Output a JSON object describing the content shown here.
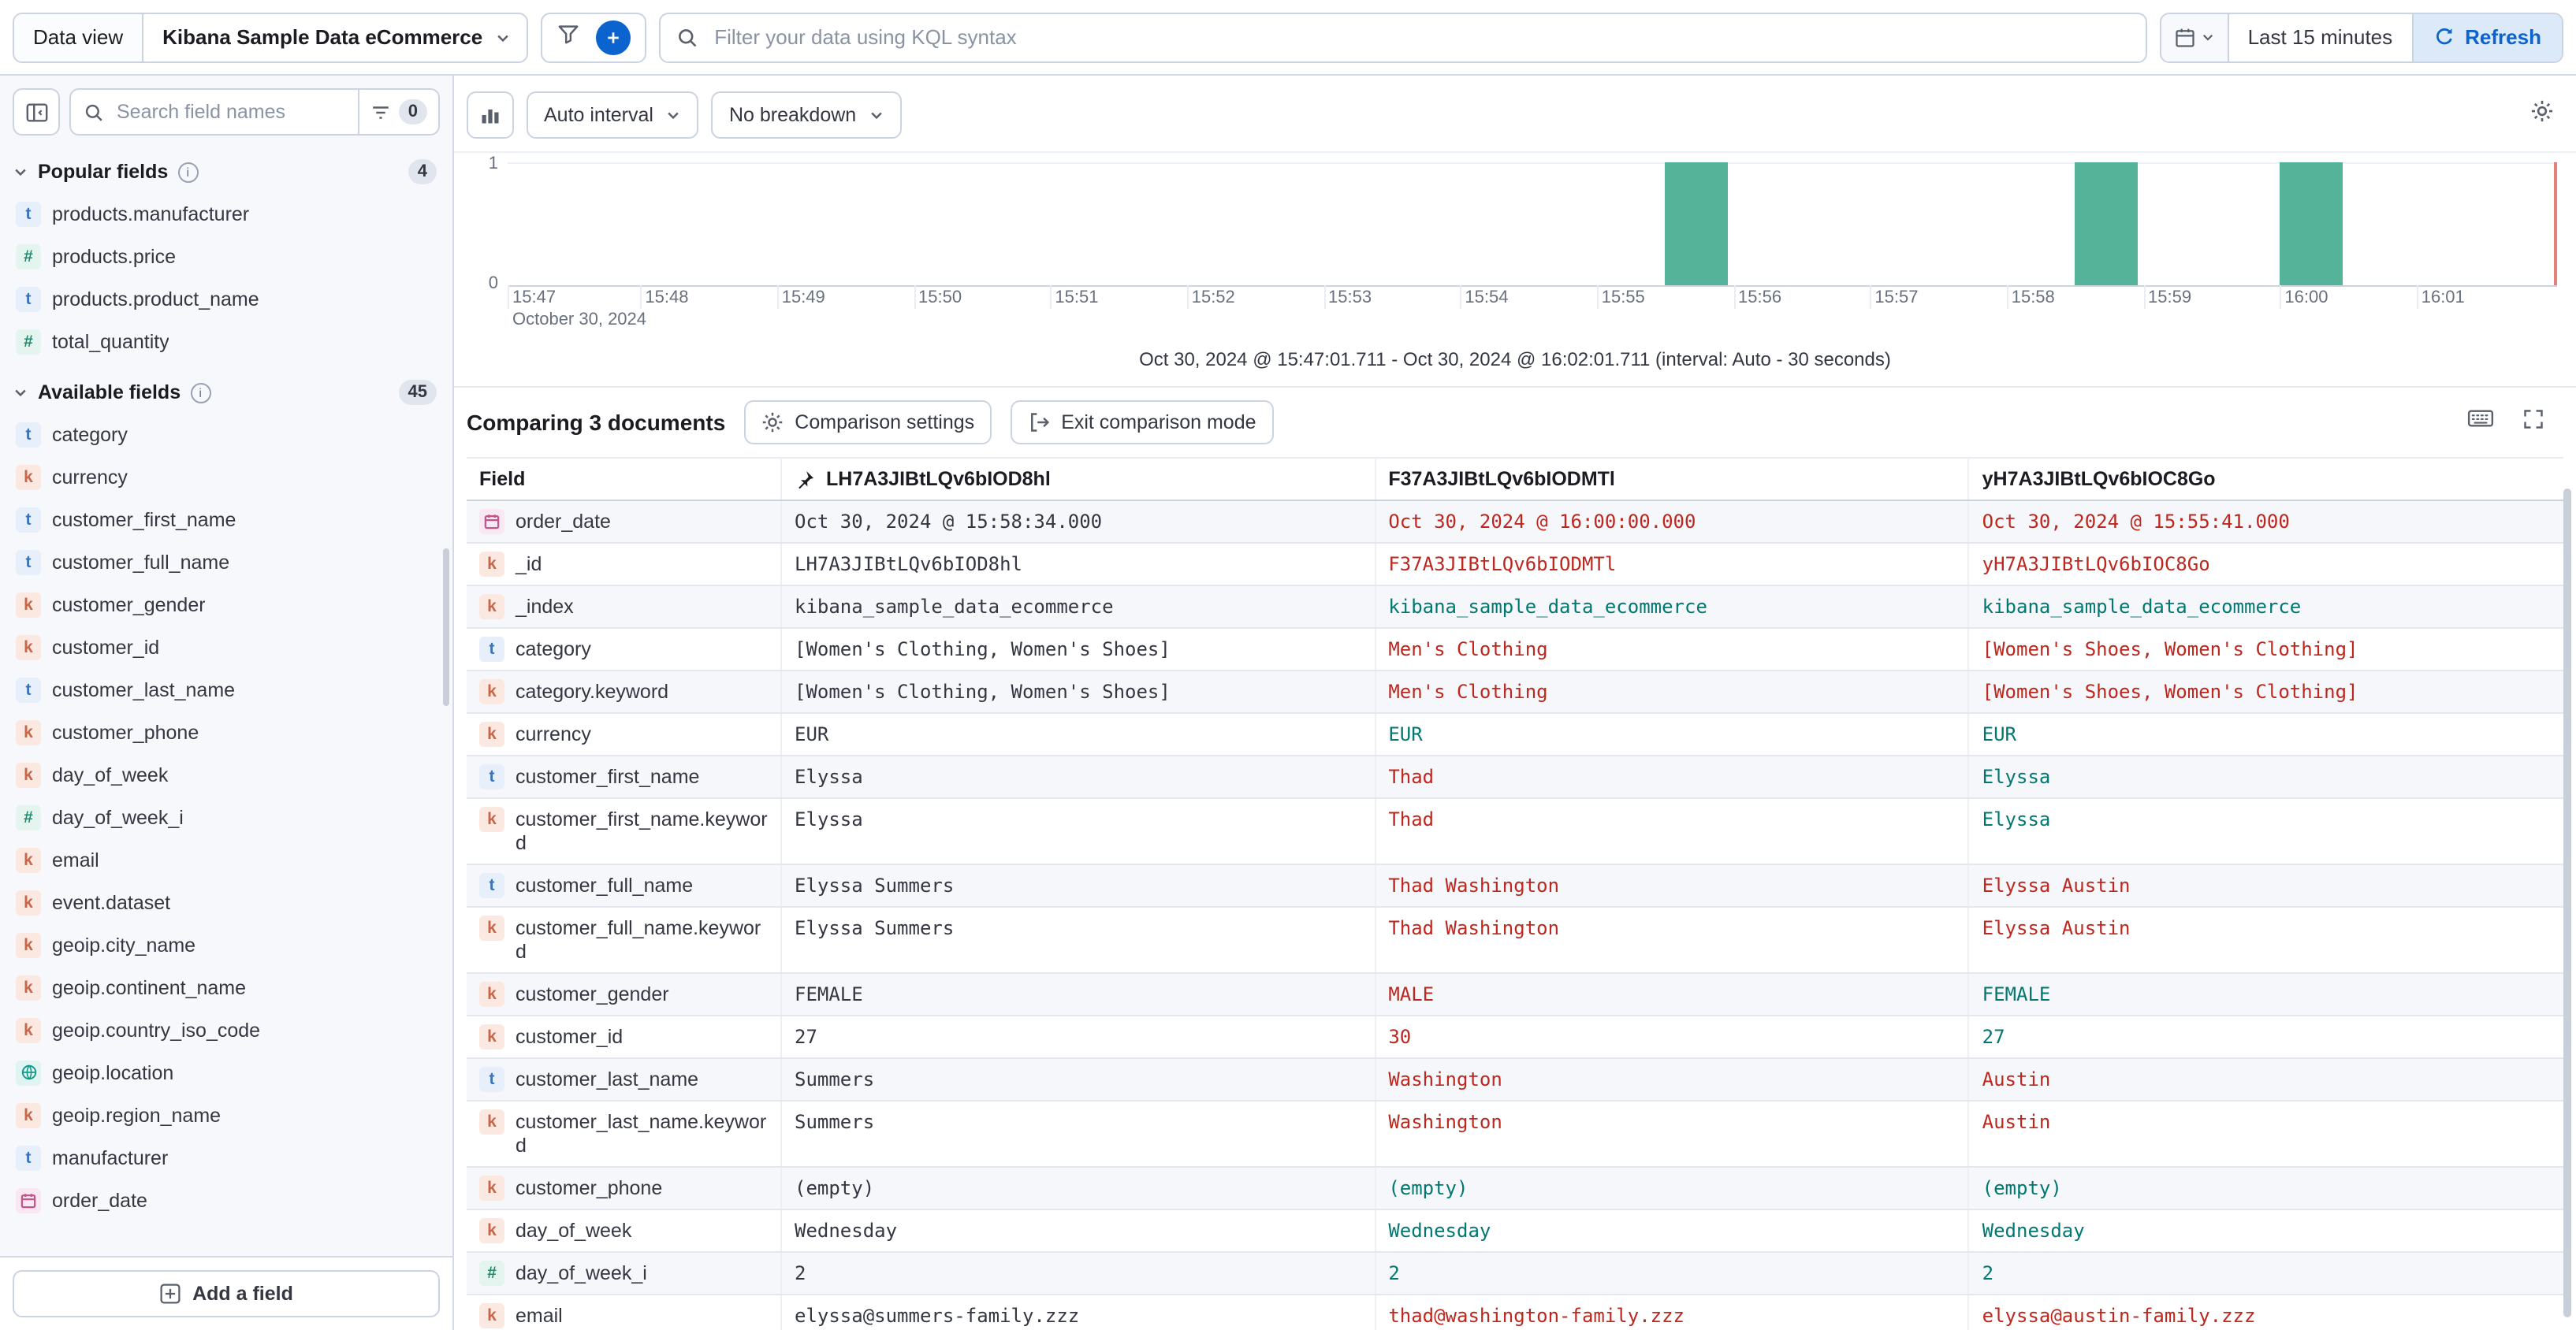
{
  "colors": {
    "primary": "#0b63ce",
    "bar": "#54b399",
    "diff": "#bd271e",
    "match": "#007871",
    "accent_badge": "#e0e5ee"
  },
  "topbar": {
    "data_view_label": "Data view",
    "data_view_value": "Kibana Sample Data eCommerce",
    "kql_placeholder": "Filter your data using KQL syntax",
    "time_range": "Last 15 minutes",
    "refresh_label": "Refresh"
  },
  "sidebar": {
    "search_placeholder": "Search field names",
    "filter_count": "0",
    "popular_label": "Popular fields",
    "popular_count": "4",
    "popular_items": [
      {
        "type": "t",
        "name": "products.manufacturer"
      },
      {
        "type": "#",
        "name": "products.price"
      },
      {
        "type": "t",
        "name": "products.product_name"
      },
      {
        "type": "#",
        "name": "total_quantity"
      }
    ],
    "available_label": "Available fields",
    "available_count": "45",
    "available_items": [
      {
        "type": "t",
        "name": "category"
      },
      {
        "type": "k",
        "name": "currency"
      },
      {
        "type": "t",
        "name": "customer_first_name"
      },
      {
        "type": "t",
        "name": "customer_full_name"
      },
      {
        "type": "k",
        "name": "customer_gender"
      },
      {
        "type": "k",
        "name": "customer_id"
      },
      {
        "type": "t",
        "name": "customer_last_name"
      },
      {
        "type": "k",
        "name": "customer_phone"
      },
      {
        "type": "k",
        "name": "day_of_week"
      },
      {
        "type": "#",
        "name": "day_of_week_i"
      },
      {
        "type": "k",
        "name": "email"
      },
      {
        "type": "k",
        "name": "event.dataset"
      },
      {
        "type": "k",
        "name": "geoip.city_name"
      },
      {
        "type": "k",
        "name": "geoip.continent_name"
      },
      {
        "type": "k",
        "name": "geoip.country_iso_code"
      },
      {
        "type": "geo",
        "name": "geoip.location"
      },
      {
        "type": "k",
        "name": "geoip.region_name"
      },
      {
        "type": "t",
        "name": "manufacturer"
      },
      {
        "type": "date",
        "name": "order_date"
      }
    ],
    "add_field_label": "Add a field"
  },
  "chart": {
    "interval_label": "Auto interval",
    "breakdown_label": "No breakdown",
    "date_label": "October 30, 2024",
    "summary": "Oct 30, 2024 @ 15:47:01.711 - Oct 30, 2024 @ 16:02:01.711 (interval: Auto - 30 seconds)"
  },
  "chart_data": {
    "type": "bar",
    "x_domain": [
      "15:47:01.711",
      "16:02:01.711"
    ],
    "interval_seconds": 30,
    "ylim": [
      0,
      1
    ],
    "y_ticks": [
      "1",
      "0"
    ],
    "x_ticks": [
      "15:47",
      "15:48",
      "15:49",
      "15:50",
      "15:51",
      "15:52",
      "15:53",
      "15:54",
      "15:55",
      "15:56",
      "15:57",
      "15:58",
      "15:59",
      "16:00",
      "16:01"
    ],
    "bars": [
      {
        "time": "15:55:30",
        "count": 1
      },
      {
        "time": "15:58:30",
        "count": 1
      },
      {
        "time": "16:00:00",
        "count": 1
      }
    ]
  },
  "comparison": {
    "title": "Comparing 3 documents",
    "settings_label": "Comparison settings",
    "exit_label": "Exit comparison mode"
  },
  "grid": {
    "field_header": "Field",
    "doc_headers": [
      "LH7A3JIBtLQv6bIOD8hl",
      "F37A3JIBtLQv6bIODMTl",
      "yH7A3JIBtLQv6bIOC8Go"
    ],
    "rows": [
      {
        "type": "date",
        "field": "order_date",
        "base": "Oct 30, 2024 @ 15:58:34.000",
        "values": [
          {
            "text": "Oct 30, 2024 @ 16:00:00.000",
            "match": false
          },
          {
            "text": "Oct 30, 2024 @ 15:55:41.000",
            "match": false
          }
        ]
      },
      {
        "type": "k",
        "field": "_id",
        "base": "LH7A3JIBtLQv6bIOD8hl",
        "values": [
          {
            "text": "F37A3JIBtLQv6bIODMTl",
            "match": false
          },
          {
            "text": "yH7A3JIBtLQv6bIOC8Go",
            "match": false
          }
        ]
      },
      {
        "type": "k",
        "field": "_index",
        "base": "kibana_sample_data_ecommerce",
        "values": [
          {
            "text": "kibana_sample_data_ecommerce",
            "match": true
          },
          {
            "text": "kibana_sample_data_ecommerce",
            "match": true
          }
        ]
      },
      {
        "type": "t",
        "field": "category",
        "base": "[Women's Clothing, Women's Shoes]",
        "values": [
          {
            "text": "Men's Clothing",
            "match": false
          },
          {
            "text": "[Women's Shoes, Women's Clothing]",
            "match": false
          }
        ]
      },
      {
        "type": "k",
        "field": "category.keyword",
        "base": "[Women's Clothing, Women's Shoes]",
        "values": [
          {
            "text": "Men's Clothing",
            "match": false
          },
          {
            "text": "[Women's Shoes, Women's Clothing]",
            "match": false
          }
        ]
      },
      {
        "type": "k",
        "field": "currency",
        "base": "EUR",
        "values": [
          {
            "text": "EUR",
            "match": true
          },
          {
            "text": "EUR",
            "match": true
          }
        ]
      },
      {
        "type": "t",
        "field": "customer_first_name",
        "base": "Elyssa",
        "values": [
          {
            "text": "Thad",
            "match": false
          },
          {
            "text": "Elyssa",
            "match": true
          }
        ]
      },
      {
        "type": "k",
        "field": "customer_first_name.keyword",
        "base": "Elyssa",
        "values": [
          {
            "text": "Thad",
            "match": false
          },
          {
            "text": "Elyssa",
            "match": true
          }
        ]
      },
      {
        "type": "t",
        "field": "customer_full_name",
        "base": "Elyssa Summers",
        "values": [
          {
            "text": "Thad Washington",
            "match": false
          },
          {
            "text": "Elyssa Austin",
            "match": false
          }
        ]
      },
      {
        "type": "k",
        "field": "customer_full_name.keyword",
        "base": "Elyssa Summers",
        "values": [
          {
            "text": "Thad Washington",
            "match": false
          },
          {
            "text": "Elyssa Austin",
            "match": false
          }
        ]
      },
      {
        "type": "k",
        "field": "customer_gender",
        "base": "FEMALE",
        "values": [
          {
            "text": "MALE",
            "match": false
          },
          {
            "text": "FEMALE",
            "match": true
          }
        ]
      },
      {
        "type": "k",
        "field": "customer_id",
        "base": "27",
        "values": [
          {
            "text": "30",
            "match": false
          },
          {
            "text": "27",
            "match": true
          }
        ]
      },
      {
        "type": "t",
        "field": "customer_last_name",
        "base": "Summers",
        "values": [
          {
            "text": "Washington",
            "match": false
          },
          {
            "text": "Austin",
            "match": false
          }
        ]
      },
      {
        "type": "k",
        "field": "customer_last_name.keyword",
        "base": "Summers",
        "values": [
          {
            "text": "Washington",
            "match": false
          },
          {
            "text": "Austin",
            "match": false
          }
        ]
      },
      {
        "type": "k",
        "field": "customer_phone",
        "base": "(empty)",
        "values": [
          {
            "text": "(empty)",
            "match": true
          },
          {
            "text": "(empty)",
            "match": true
          }
        ]
      },
      {
        "type": "k",
        "field": "day_of_week",
        "base": "Wednesday",
        "values": [
          {
            "text": "Wednesday",
            "match": true
          },
          {
            "text": "Wednesday",
            "match": true
          }
        ]
      },
      {
        "type": "#",
        "field": "day_of_week_i",
        "base": "2",
        "values": [
          {
            "text": "2",
            "match": true
          },
          {
            "text": "2",
            "match": true
          }
        ]
      },
      {
        "type": "k",
        "field": "email",
        "base": "elyssa@summers-family.zzz",
        "values": [
          {
            "text": "thad@washington-family.zzz",
            "match": false
          },
          {
            "text": "elyssa@austin-family.zzz",
            "match": false
          }
        ]
      }
    ]
  }
}
